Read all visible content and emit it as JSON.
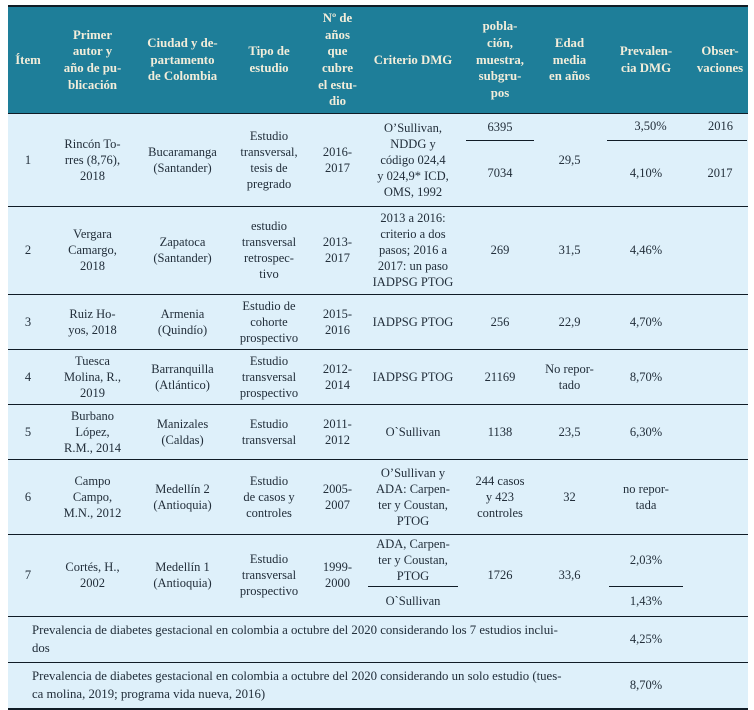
{
  "colors": {
    "header_bg": "#1e7e99",
    "header_text": "#f2edda",
    "row_bg": "#def0fa",
    "rule_line": "#101c26",
    "body_text": "#222e3a"
  },
  "table": {
    "columns": [
      {
        "id": "item",
        "label": "Ítem"
      },
      {
        "id": "author",
        "label": "Primer\nautor y\naño de pu-\nblicación"
      },
      {
        "id": "city",
        "label": "Ciudad y de-\npartamento\nde Colombia"
      },
      {
        "id": "study",
        "label": "Tipo de\nestudio"
      },
      {
        "id": "years",
        "label": "Nº de\naños\nque\ncubre\nel estu-\ndio"
      },
      {
        "id": "criteria",
        "label": "Criterio DMG"
      },
      {
        "id": "population",
        "label": "pobla-\nción,\nmuestra,\nsubgru-\npos"
      },
      {
        "id": "age",
        "label": "Edad\nmedia\nen años"
      },
      {
        "id": "prevalence",
        "label": "Prevalen-\ncia DMG"
      },
      {
        "id": "observations",
        "label": "Obser-\nvaciones"
      }
    ],
    "rows": [
      {
        "item": "1",
        "author": "Rincón To-\nrres (8,76),\n2018",
        "city": "Bucaramanga\n(Santander)",
        "study": "Estudio\ntransversal,\ntesis de\npregrado",
        "years": "2016-\n2017",
        "criteria": "O’Sullivan,\nNDDG y\ncódigo 024,4\ny 024,9* ICD,\nOMS, 1992",
        "population": {
          "top": "6395",
          "bottom": "7034"
        },
        "age": "29,5",
        "prevalence": {
          "top": "3,50%",
          "bottom": "4,10%"
        },
        "observations": {
          "top": "2016",
          "bottom": "2017"
        }
      },
      {
        "item": "2",
        "author": "Vergara\nCamargo,\n2018",
        "city": "Zapatoca\n(Santander)",
        "study": "estudio\ntransversal\nretrospec-\ntivo",
        "years": "2013-\n2017",
        "criteria": "2013 a 2016:\ncriterio a dos\npasos; 2016 a\n2017: un paso\nIADPSG PTOG",
        "population": "269",
        "age": "31,5",
        "prevalence": "4,46%",
        "observations": ""
      },
      {
        "item": "3",
        "author": "Ruiz Ho-\nyos, 2018",
        "city": "Armenia\n(Quindío)",
        "study": "Estudio de\ncohorte\nprospectivo",
        "years": "2015-\n2016",
        "criteria": "IADPSG PTOG",
        "population": "256",
        "age": "22,9",
        "prevalence": "4,70%",
        "observations": ""
      },
      {
        "item": "4",
        "author": "Tuesca\nMolina, R.,\n2019",
        "city": "Barranquilla\n(Atlántico)",
        "study": "Estudio\ntransversal\nprospectivo",
        "years": "2012-\n2014",
        "criteria": "IADPSG PTOG",
        "population": "21169",
        "age": "No repor-\ntado",
        "prevalence": "8,70%",
        "observations": ""
      },
      {
        "item": "5",
        "author": "Burbano\nLópez,\nR.M., 2014",
        "city": "Manizales\n(Caldas)",
        "study": "Estudio\ntransversal",
        "years": "2011-\n2012",
        "criteria": "O`Sullivan",
        "population": "1138",
        "age": "23,5",
        "prevalence": "6,30%",
        "observations": ""
      },
      {
        "item": "6",
        "author": "Campo\nCampo,\nM.N., 2012",
        "city": "Medellín 2\n(Antioquia)",
        "study": "Estudio\nde casos y\ncontroles",
        "years": "2005-\n2007",
        "criteria": "O’Sullivan y\nADA: Carpen-\nter y Coustan,\nPTOG",
        "population": "244 casos\ny 423\ncontroles",
        "age": "32",
        "prevalence": "no repor-\ntada",
        "observations": ""
      },
      {
        "item": "7",
        "author": "Cortés, H.,\n2002",
        "city": "Medellín 1\n(Antioquia)",
        "study": "Estudio\ntransversal\nprospectivo",
        "years": "1999-\n2000",
        "criteria": {
          "top": "ADA, Carpen-\nter y Coustan,\nPTOG",
          "bottom": "O`Sullivan"
        },
        "population": "1726",
        "age": "33,6",
        "prevalence": {
          "top": "2,03%",
          "bottom": "1,43%"
        },
        "observations": ""
      }
    ],
    "summary_rows": [
      {
        "label": "Prevalencia de diabetes gestacional en colombia a octubre del 2020 considerando los 7 estudios inclui-\ndos",
        "value": "4,25%"
      },
      {
        "label": "Prevalencia de diabetes gestacional en colombia a octubre del 2020 considerando un solo estudio (tues-\nca molina, 2019; programa vida nueva, 2016)",
        "value": "8,70%"
      }
    ]
  }
}
